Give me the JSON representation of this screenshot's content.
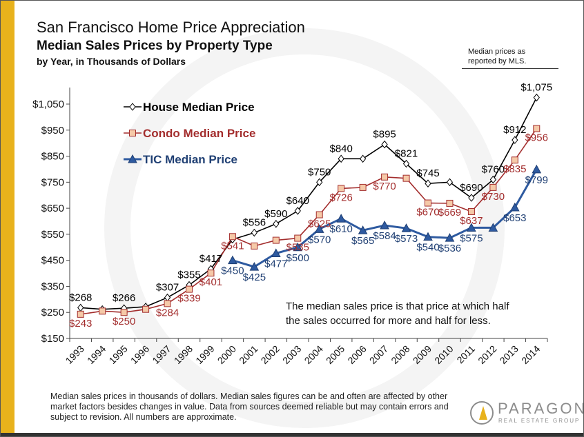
{
  "titles": {
    "line1": "San Francisco Home Price Appreciation",
    "line2": "Median Sales Prices by Property Type",
    "line3": "by Year, in Thousands of Dollars"
  },
  "source_note": "Median prices as reported by MLS.",
  "footnote": "Median sales prices in thousands of dollars. Median sales figures can be and often are affected by other market factors besides changes in value. Data from sources deemed reliable but may contain errors and subject to revision. All numbers are approximate.",
  "logo": {
    "word": "PARAGON",
    "sub": "REAL ESTATE GROUP"
  },
  "chart_data": {
    "type": "line",
    "x": [
      "1993",
      "1994",
      "1995",
      "1996",
      "1997",
      "1998",
      "1999",
      "2000",
      "2001",
      "2002",
      "2003",
      "2004",
      "2005",
      "2006",
      "2007",
      "2008",
      "2009",
      "2010",
      "2011",
      "2012",
      "2013",
      "2014"
    ],
    "y_ticks": [
      "$150",
      "$250",
      "$350",
      "$450",
      "$550",
      "$650",
      "$750",
      "$850",
      "$950",
      "$1,050"
    ],
    "ylim": [
      150,
      1100
    ],
    "grid": false,
    "legend_position": "top-left",
    "annotation": "The median sales price is that price at which half the sales occurred for more and half for less.",
    "series": [
      {
        "name": "House Median Price",
        "color": "#000000",
        "marker": "diamond",
        "label_color": "#000000",
        "values": [
          268,
          262,
          266,
          272,
          307,
          355,
          417,
          530,
          556,
          590,
          640,
          750,
          840,
          840,
          895,
          821,
          745,
          750,
          690,
          760,
          912,
          1075
        ],
        "labels": [
          "$268",
          null,
          "$266",
          null,
          "$307",
          "$355",
          "$417",
          null,
          "$556",
          "$590",
          "$640",
          "$750",
          "$840",
          null,
          "$895",
          "$821",
          "$745",
          null,
          "$690",
          "$760",
          "$912",
          "$1,075"
        ]
      },
      {
        "name": "Condo Median Price",
        "color": "#a32d2d",
        "marker": "square",
        "label_color": "#a32d2d",
        "values": [
          243,
          255,
          250,
          262,
          284,
          339,
          401,
          541,
          505,
          527,
          535,
          625,
          726,
          730,
          770,
          765,
          670,
          669,
          637,
          730,
          835,
          956
        ],
        "labels": [
          "$243",
          null,
          "$250",
          null,
          "$284",
          "$339",
          "$401",
          "$541",
          null,
          null,
          "$535",
          "$625",
          "$726",
          null,
          "$770",
          null,
          "$670",
          "$669",
          "$637",
          "$730",
          "$835",
          "$956"
        ]
      },
      {
        "name": "TIC Median Price",
        "color": "#2e5aa0",
        "marker": "triangle",
        "label_color": "#1f3f73",
        "values": [
          null,
          null,
          null,
          null,
          null,
          null,
          null,
          450,
          425,
          477,
          500,
          570,
          610,
          565,
          584,
          573,
          540,
          536,
          575,
          575,
          653,
          799
        ],
        "labels": [
          null,
          null,
          null,
          null,
          null,
          null,
          null,
          "$450",
          "$425",
          "$477",
          "$500",
          "$570",
          "$610",
          "$565",
          "$584",
          "$573",
          "$540",
          "$536",
          "$575",
          null,
          "$653",
          "$799"
        ]
      }
    ]
  }
}
